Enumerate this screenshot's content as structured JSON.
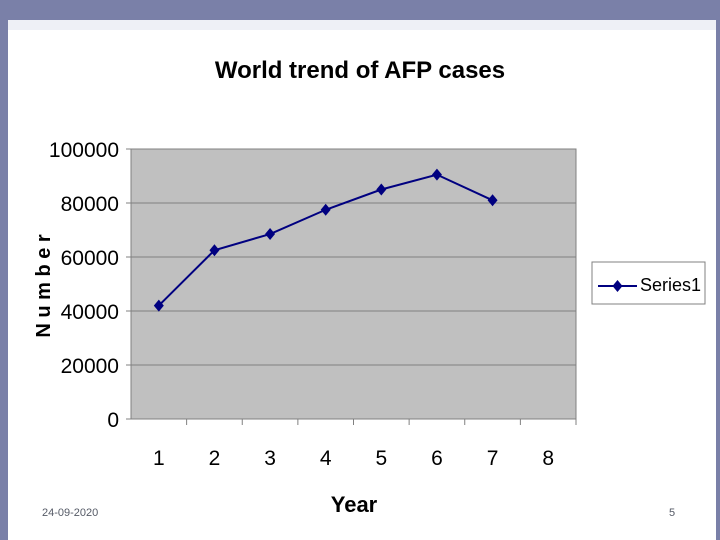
{
  "slide": {
    "date": "24-09-2020",
    "page_number": "5"
  },
  "chart_data": {
    "type": "line",
    "title": "World trend of AFP cases",
    "xlabel": "Year",
    "ylabel": "N u m b e r",
    "x_categories": [
      "1",
      "2",
      "3",
      "4",
      "5",
      "6",
      "7",
      "8"
    ],
    "y_ticks": [
      "0",
      "20000",
      "40000",
      "60000",
      "80000",
      "100000"
    ],
    "ylim": [
      0,
      100000
    ],
    "grid": true,
    "legend_position": "right",
    "plot_background": "#c0c0c0",
    "series": [
      {
        "name": "Series1",
        "color": "#000080",
        "marker": "diamond",
        "x": [
          1,
          2,
          3,
          4,
          5,
          6,
          7
        ],
        "values": [
          42000,
          62500,
          68500,
          77500,
          85000,
          90500,
          81000
        ]
      }
    ]
  }
}
